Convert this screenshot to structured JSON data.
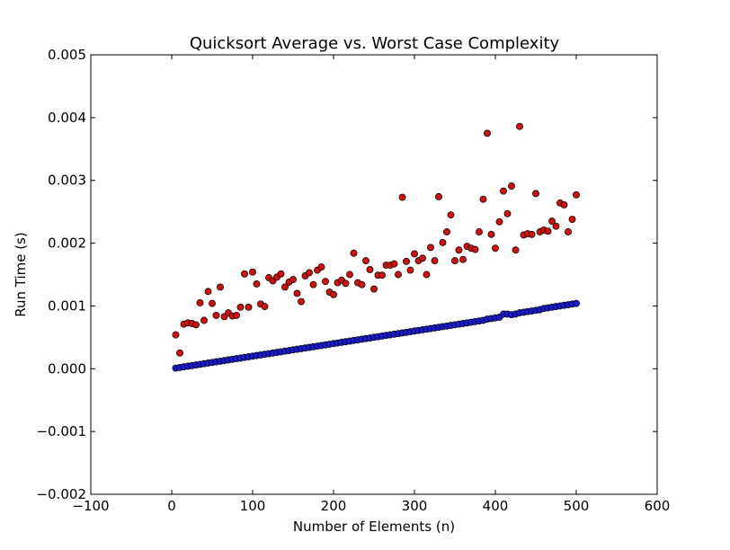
{
  "chart_data": {
    "type": "scatter",
    "title": "Quicksort Average vs. Worst Case Complexity",
    "xlabel": "Number of Elements (n)",
    "ylabel": "Run Time (s)",
    "xlim": [
      -100,
      600
    ],
    "ylim": [
      -0.002,
      0.005
    ],
    "xticks": [
      -100,
      0,
      100,
      200,
      300,
      400,
      500,
      600
    ],
    "yticks": [
      -0.002,
      -0.001,
      0.0,
      0.001,
      0.002,
      0.003,
      0.004,
      0.005
    ],
    "xtick_labels": [
      "−100",
      "0",
      "100",
      "200",
      "300",
      "400",
      "500",
      "600"
    ],
    "ytick_labels": [
      "−0.002",
      "−0.001",
      "0.000",
      "0.001",
      "0.002",
      "0.003",
      "0.004",
      "0.005"
    ],
    "grid": false,
    "legend": "none",
    "series": [
      {
        "color": "#cc1111",
        "x": [
          5,
          10,
          15,
          20,
          25,
          30,
          35,
          40,
          45,
          50,
          55,
          60,
          65,
          70,
          75,
          80,
          85,
          90,
          95,
          100,
          105,
          110,
          115,
          120,
          125,
          130,
          135,
          140,
          145,
          150,
          155,
          160,
          165,
          170,
          175,
          180,
          185,
          190,
          195,
          200,
          205,
          210,
          215,
          220,
          225,
          230,
          235,
          240,
          245,
          250,
          255,
          260,
          265,
          270,
          275,
          280,
          285,
          290,
          295,
          300,
          305,
          310,
          315,
          320,
          325,
          330,
          335,
          340,
          345,
          350,
          355,
          360,
          365,
          370,
          375,
          380,
          385,
          390,
          395,
          400,
          405,
          410,
          415,
          420,
          425,
          430,
          435,
          440,
          445,
          450,
          455,
          460,
          465,
          470,
          475,
          480,
          485,
          490,
          495,
          500
        ],
        "y": [
          0.00054,
          0.00025,
          0.00071,
          0.00073,
          0.00072,
          0.0007,
          0.00105,
          0.00077,
          0.00123,
          0.00104,
          0.00085,
          0.0013,
          0.00083,
          0.00089,
          0.00084,
          0.00085,
          0.00098,
          0.00151,
          0.00098,
          0.00154,
          0.00135,
          0.00103,
          0.00099,
          0.00145,
          0.0014,
          0.00146,
          0.00151,
          0.0013,
          0.00138,
          0.00142,
          0.0012,
          0.00107,
          0.00148,
          0.00153,
          0.00134,
          0.00157,
          0.00162,
          0.00139,
          0.00122,
          0.00118,
          0.00137,
          0.00141,
          0.00136,
          0.0015,
          0.00184,
          0.00137,
          0.00134,
          0.00172,
          0.00158,
          0.00127,
          0.00149,
          0.00149,
          0.00165,
          0.00165,
          0.00167,
          0.0015,
          0.00273,
          0.00171,
          0.00157,
          0.00183,
          0.00172,
          0.00176,
          0.0015,
          0.00193,
          0.00172,
          0.00274,
          0.00201,
          0.00218,
          0.00245,
          0.00172,
          0.00189,
          0.00174,
          0.00195,
          0.00192,
          0.0019,
          0.00218,
          0.0027,
          0.00375,
          0.00214,
          0.00192,
          0.00234,
          0.00283,
          0.00247,
          0.00291,
          0.00189,
          0.00386,
          0.00213,
          0.00215,
          0.00214,
          0.00279,
          0.00218,
          0.00221,
          0.00219,
          0.00235,
          0.00227,
          0.00264,
          0.00261,
          0.00218,
          0.00238,
          0.00277
        ]
      },
      {
        "color": "#1a1acc",
        "x": [
          5,
          10,
          15,
          20,
          25,
          30,
          35,
          40,
          45,
          50,
          55,
          60,
          65,
          70,
          75,
          80,
          85,
          90,
          95,
          100,
          105,
          110,
          115,
          120,
          125,
          130,
          135,
          140,
          145,
          150,
          155,
          160,
          165,
          170,
          175,
          180,
          185,
          190,
          195,
          200,
          205,
          210,
          215,
          220,
          225,
          230,
          235,
          240,
          245,
          250,
          255,
          260,
          265,
          270,
          275,
          280,
          285,
          290,
          295,
          300,
          305,
          310,
          315,
          320,
          325,
          330,
          335,
          340,
          345,
          350,
          355,
          360,
          365,
          370,
          375,
          380,
          385,
          390,
          395,
          400,
          405,
          410,
          415,
          420,
          425,
          430,
          435,
          440,
          445,
          450,
          455,
          460,
          465,
          470,
          475,
          480,
          485,
          490,
          495,
          500
        ],
        "y": [
          1e-05,
          2e-05,
          3e-05,
          4e-05,
          5e-05,
          6e-05,
          7e-05,
          8e-05,
          9e-05,
          0.0001,
          0.00011,
          0.00012,
          0.00013,
          0.00014,
          0.00015,
          0.00016,
          0.00017,
          0.00018,
          0.00019,
          0.0002,
          0.00021,
          0.00022,
          0.00023,
          0.00024,
          0.00025,
          0.00026,
          0.00027,
          0.00028,
          0.00029,
          0.0003,
          0.00031,
          0.00032,
          0.00033,
          0.00034,
          0.00035,
          0.00036,
          0.00037,
          0.00038,
          0.00039,
          0.0004,
          0.00041,
          0.00042,
          0.00043,
          0.00044,
          0.00045,
          0.00046,
          0.00047,
          0.00048,
          0.00049,
          0.0005,
          0.00051,
          0.00052,
          0.00053,
          0.00054,
          0.00055,
          0.00056,
          0.00057,
          0.00058,
          0.00059,
          0.0006,
          0.00061,
          0.00062,
          0.00063,
          0.00064,
          0.00065,
          0.00066,
          0.00067,
          0.00068,
          0.00069,
          0.0007,
          0.00071,
          0.00072,
          0.00073,
          0.00074,
          0.00075,
          0.00076,
          0.00077,
          0.00079,
          0.0008,
          0.00081,
          0.00082,
          0.00087,
          0.00087,
          0.00086,
          0.00087,
          0.00089,
          0.0009,
          0.00091,
          0.00092,
          0.00093,
          0.00094,
          0.00096,
          0.00097,
          0.00098,
          0.00099,
          0.001,
          0.00101,
          0.00102,
          0.00103,
          0.00104
        ]
      }
    ]
  }
}
